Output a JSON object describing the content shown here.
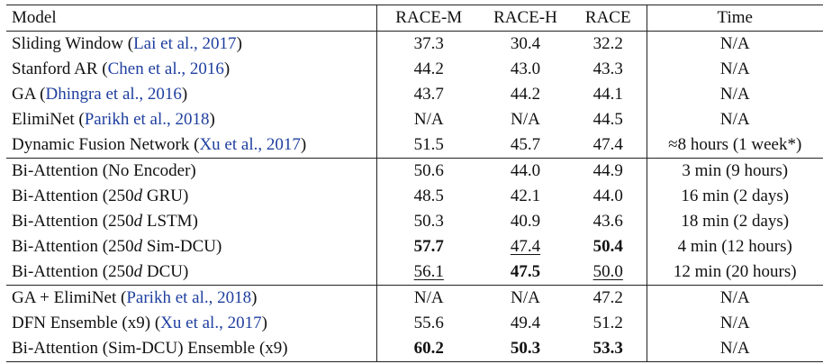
{
  "headers": {
    "model": "Model",
    "race_m": "RACE-M",
    "race_h": "RACE-H",
    "race": "RACE",
    "time": "Time"
  },
  "rows": [
    {
      "name": "Sliding Window ",
      "cite": "Lai et al., 2017",
      "m": "37.3",
      "h": "30.4",
      "r": "32.2",
      "time": "N/A"
    },
    {
      "name": "Stanford AR ",
      "cite": "Chen et al., 2016",
      "m": "44.2",
      "h": "43.0",
      "r": "43.3",
      "time": "N/A"
    },
    {
      "name": "GA ",
      "cite": "Dhingra et al., 2016",
      "m": "43.7",
      "h": "44.2",
      "r": "44.1",
      "time": "N/A"
    },
    {
      "name": "ElimiNet ",
      "cite": "Parikh et al., 2018",
      "m": "N/A",
      "h": "N/A",
      "r": "44.5",
      "time": "N/A"
    },
    {
      "name": "Dynamic Fusion Network ",
      "cite": "Xu et al., 2017",
      "m": "51.5",
      "h": "45.7",
      "r": "47.4",
      "time": "≈8 hours (1 week*)"
    },
    {
      "name": "Bi-Attention (No Encoder)",
      "m": "50.6",
      "h": "44.0",
      "r": "44.9",
      "time": "3 min (9 hours)"
    },
    {
      "name_pre": "Bi-Attention (250",
      "name_it": "d",
      "name_post": " GRU)",
      "m": "48.5",
      "h": "42.1",
      "r": "44.0",
      "time": "16 min (2 days)"
    },
    {
      "name_pre": "Bi-Attention (250",
      "name_it": "d",
      "name_post": " LSTM)",
      "m": "50.3",
      "h": "40.9",
      "r": "43.6",
      "time": "18 min (2 days)"
    },
    {
      "name_pre": "Bi-Attention (250",
      "name_it": "d",
      "name_post": " Sim-DCU)",
      "m": "57.7",
      "h": "47.4",
      "r": "50.4",
      "time": "4 min (12 hours)"
    },
    {
      "name_pre": "Bi-Attention (250",
      "name_it": "d",
      "name_post": " DCU)",
      "m": "56.1",
      "h": "47.5",
      "r": "50.0",
      "time": "12 min (20 hours)"
    },
    {
      "name": "GA + ElimiNet ",
      "cite": "Parikh et al., 2018",
      "m": "N/A",
      "h": "N/A",
      "r": "47.2",
      "time": "N/A"
    },
    {
      "name": "DFN Ensemble (x9) ",
      "cite": "Xu et al., 2017",
      "m": "55.6",
      "h": "49.4",
      "r": "51.2",
      "time": "N/A"
    },
    {
      "name": "Bi-Attention (Sim-DCU) Ensemble (x9)",
      "m": "60.2",
      "h": "50.3",
      "r": "53.3",
      "time": "N/A"
    }
  ]
}
